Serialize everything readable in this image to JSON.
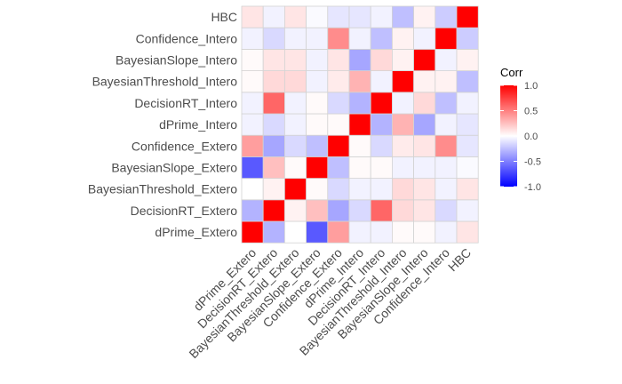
{
  "chart_data": {
    "type": "heatmap",
    "variables": [
      "dPrime_Extero",
      "DecisionRT_Extero",
      "BayesianThreshold_Extero",
      "BayesianSlope_Extero",
      "Confidence_Extero",
      "dPrime_Intero",
      "DecisionRT_Intero",
      "BayesianThreshold_Intero",
      "BayesianSlope_Intero",
      "Confidence_Intero",
      "HBC"
    ],
    "matrix": [
      [
        1.0,
        -0.3,
        0.0,
        -0.65,
        0.38,
        -0.05,
        -0.05,
        0.02,
        0.02,
        -0.05,
        0.1
      ],
      [
        -0.3,
        1.0,
        0.05,
        0.25,
        -0.35,
        -0.15,
        0.6,
        0.15,
        0.1,
        -0.15,
        -0.05
      ],
      [
        0.0,
        0.05,
        1.0,
        0.02,
        -0.15,
        -0.05,
        -0.05,
        0.15,
        0.1,
        -0.05,
        0.1
      ],
      [
        -0.65,
        0.25,
        0.02,
        1.0,
        -0.25,
        0.02,
        0.02,
        -0.05,
        -0.05,
        -0.05,
        -0.02
      ],
      [
        0.38,
        -0.35,
        -0.15,
        -0.25,
        1.0,
        0.02,
        -0.15,
        0.08,
        0.1,
        0.45,
        -0.1
      ],
      [
        -0.05,
        -0.15,
        -0.05,
        0.02,
        0.02,
        1.0,
        -0.3,
        0.3,
        -0.35,
        -0.05,
        -0.1
      ],
      [
        -0.05,
        0.6,
        -0.05,
        0.02,
        -0.15,
        -0.3,
        1.0,
        -0.05,
        0.15,
        -0.25,
        -0.05
      ],
      [
        0.02,
        0.15,
        0.15,
        -0.05,
        0.08,
        0.3,
        -0.05,
        1.0,
        0.05,
        0.05,
        -0.25
      ],
      [
        0.02,
        0.1,
        0.1,
        -0.05,
        0.1,
        -0.35,
        0.15,
        0.05,
        1.0,
        -0.05,
        0.05
      ],
      [
        -0.05,
        -0.15,
        -0.05,
        -0.05,
        0.45,
        -0.05,
        -0.25,
        0.05,
        -0.05,
        1.0,
        -0.2
      ],
      [
        0.1,
        -0.05,
        0.1,
        -0.02,
        -0.1,
        -0.1,
        -0.05,
        -0.25,
        0.05,
        -0.2,
        1.0
      ]
    ],
    "legend": {
      "title": "Corr",
      "ticks": [
        1.0,
        0.5,
        0.0,
        -0.5,
        -1.0
      ],
      "tick_labels": [
        "1.0",
        "0.5",
        "0.0",
        "-0.5",
        "-1.0"
      ],
      "placement": "right"
    },
    "range": [
      -1,
      1
    ],
    "colors": {
      "low": "#0000ff",
      "mid": "#ffffff",
      "high": "#ff0000",
      "border": "#d3d3d3"
    },
    "title": "",
    "xlabel": "",
    "ylabel": ""
  }
}
